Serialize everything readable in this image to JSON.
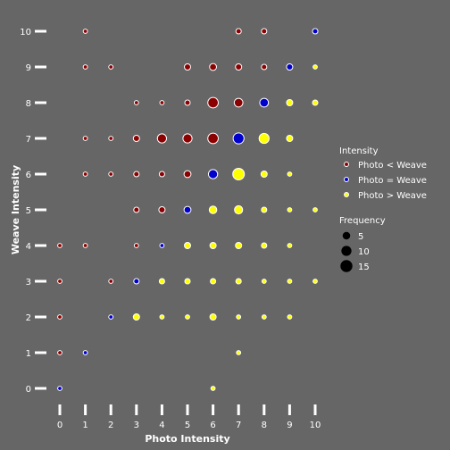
{
  "chart_data": {
    "type": "scatter",
    "title": "",
    "xlabel": "Photo Intensity",
    "ylabel": "Weave Intensity",
    "xlim": [
      0,
      10
    ],
    "ylim": [
      0,
      10
    ],
    "x_ticks": [
      "0",
      "1",
      "2",
      "3",
      "4",
      "5",
      "6",
      "7",
      "8",
      "9",
      "10"
    ],
    "y_ticks": [
      "0",
      "1",
      "2",
      "3",
      "4",
      "5",
      "6",
      "7",
      "8",
      "9",
      "10"
    ],
    "background": "#666666",
    "grid": false,
    "legend_placement": "right",
    "color_legend": {
      "title": "Intensity",
      "entries": [
        {
          "label": "Photo < Weave",
          "color": "#8b0000"
        },
        {
          "label": "Photo = Weave",
          "color": "#0000cd"
        },
        {
          "label": "Photo > Weave",
          "color": "#ffff00"
        }
      ]
    },
    "size_legend": {
      "title": "Frequency",
      "entries": [
        {
          "label": "5",
          "value": 5
        },
        {
          "label": "10",
          "value": 10
        },
        {
          "label": "15",
          "value": 15
        }
      ]
    },
    "points": [
      {
        "x": 0,
        "y": 0,
        "freq": 1
      },
      {
        "x": 6,
        "y": 0,
        "freq": 1
      },
      {
        "x": 0,
        "y": 1,
        "freq": 1
      },
      {
        "x": 1,
        "y": 1,
        "freq": 1
      },
      {
        "x": 7,
        "y": 1,
        "freq": 1
      },
      {
        "x": 0,
        "y": 2,
        "freq": 1
      },
      {
        "x": 2,
        "y": 2,
        "freq": 1
      },
      {
        "x": 3,
        "y": 2,
        "freq": 3
      },
      {
        "x": 4,
        "y": 2,
        "freq": 1
      },
      {
        "x": 5,
        "y": 2,
        "freq": 1
      },
      {
        "x": 6,
        "y": 2,
        "freq": 3
      },
      {
        "x": 7,
        "y": 2,
        "freq": 1
      },
      {
        "x": 8,
        "y": 2,
        "freq": 1
      },
      {
        "x": 9,
        "y": 2,
        "freq": 1
      },
      {
        "x": 0,
        "y": 3,
        "freq": 1
      },
      {
        "x": 2,
        "y": 3,
        "freq": 1
      },
      {
        "x": 3,
        "y": 3,
        "freq": 2
      },
      {
        "x": 4,
        "y": 3,
        "freq": 2
      },
      {
        "x": 5,
        "y": 3,
        "freq": 2
      },
      {
        "x": 6,
        "y": 3,
        "freq": 2
      },
      {
        "x": 7,
        "y": 3,
        "freq": 2
      },
      {
        "x": 8,
        "y": 3,
        "freq": 1
      },
      {
        "x": 9,
        "y": 3,
        "freq": 1
      },
      {
        "x": 10,
        "y": 3,
        "freq": 1
      },
      {
        "x": 0,
        "y": 4,
        "freq": 1
      },
      {
        "x": 1,
        "y": 4,
        "freq": 1
      },
      {
        "x": 3,
        "y": 4,
        "freq": 1
      },
      {
        "x": 4,
        "y": 4,
        "freq": 1
      },
      {
        "x": 5,
        "y": 4,
        "freq": 3
      },
      {
        "x": 6,
        "y": 4,
        "freq": 3
      },
      {
        "x": 7,
        "y": 4,
        "freq": 3
      },
      {
        "x": 8,
        "y": 4,
        "freq": 2
      },
      {
        "x": 9,
        "y": 4,
        "freq": 1
      },
      {
        "x": 3,
        "y": 5,
        "freq": 2
      },
      {
        "x": 4,
        "y": 5,
        "freq": 3
      },
      {
        "x": 5,
        "y": 5,
        "freq": 4
      },
      {
        "x": 6,
        "y": 5,
        "freq": 5
      },
      {
        "x": 7,
        "y": 5,
        "freq": 6
      },
      {
        "x": 8,
        "y": 5,
        "freq": 2
      },
      {
        "x": 9,
        "y": 5,
        "freq": 1
      },
      {
        "x": 10,
        "y": 5,
        "freq": 1
      },
      {
        "x": 1,
        "y": 6,
        "freq": 1
      },
      {
        "x": 2,
        "y": 6,
        "freq": 1
      },
      {
        "x": 3,
        "y": 6,
        "freq": 2
      },
      {
        "x": 4,
        "y": 6,
        "freq": 2
      },
      {
        "x": 5,
        "y": 6,
        "freq": 4
      },
      {
        "x": 6,
        "y": 6,
        "freq": 8
      },
      {
        "x": 7,
        "y": 6,
        "freq": 14
      },
      {
        "x": 8,
        "y": 6,
        "freq": 3
      },
      {
        "x": 9,
        "y": 6,
        "freq": 1
      },
      {
        "x": 1,
        "y": 7,
        "freq": 1
      },
      {
        "x": 2,
        "y": 7,
        "freq": 1
      },
      {
        "x": 3,
        "y": 7,
        "freq": 3
      },
      {
        "x": 4,
        "y": 7,
        "freq": 8
      },
      {
        "x": 5,
        "y": 7,
        "freq": 8
      },
      {
        "x": 6,
        "y": 7,
        "freq": 11
      },
      {
        "x": 7,
        "y": 7,
        "freq": 12
      },
      {
        "x": 8,
        "y": 7,
        "freq": 10
      },
      {
        "x": 9,
        "y": 7,
        "freq": 3
      },
      {
        "x": 3,
        "y": 8,
        "freq": 1
      },
      {
        "x": 4,
        "y": 8,
        "freq": 1
      },
      {
        "x": 5,
        "y": 8,
        "freq": 2
      },
      {
        "x": 6,
        "y": 8,
        "freq": 11
      },
      {
        "x": 7,
        "y": 8,
        "freq": 7
      },
      {
        "x": 8,
        "y": 8,
        "freq": 7
      },
      {
        "x": 9,
        "y": 8,
        "freq": 3
      },
      {
        "x": 10,
        "y": 8,
        "freq": 2
      },
      {
        "x": 1,
        "y": 9,
        "freq": 1
      },
      {
        "x": 2,
        "y": 9,
        "freq": 1
      },
      {
        "x": 5,
        "y": 9,
        "freq": 3
      },
      {
        "x": 6,
        "y": 9,
        "freq": 4
      },
      {
        "x": 7,
        "y": 9,
        "freq": 3
      },
      {
        "x": 8,
        "y": 9,
        "freq": 2
      },
      {
        "x": 9,
        "y": 9,
        "freq": 3
      },
      {
        "x": 10,
        "y": 9,
        "freq": 1
      },
      {
        "x": 1,
        "y": 10,
        "freq": 1
      },
      {
        "x": 7,
        "y": 10,
        "freq": 2
      },
      {
        "x": 8,
        "y": 10,
        "freq": 2
      },
      {
        "x": 10,
        "y": 10,
        "freq": 2
      }
    ]
  }
}
